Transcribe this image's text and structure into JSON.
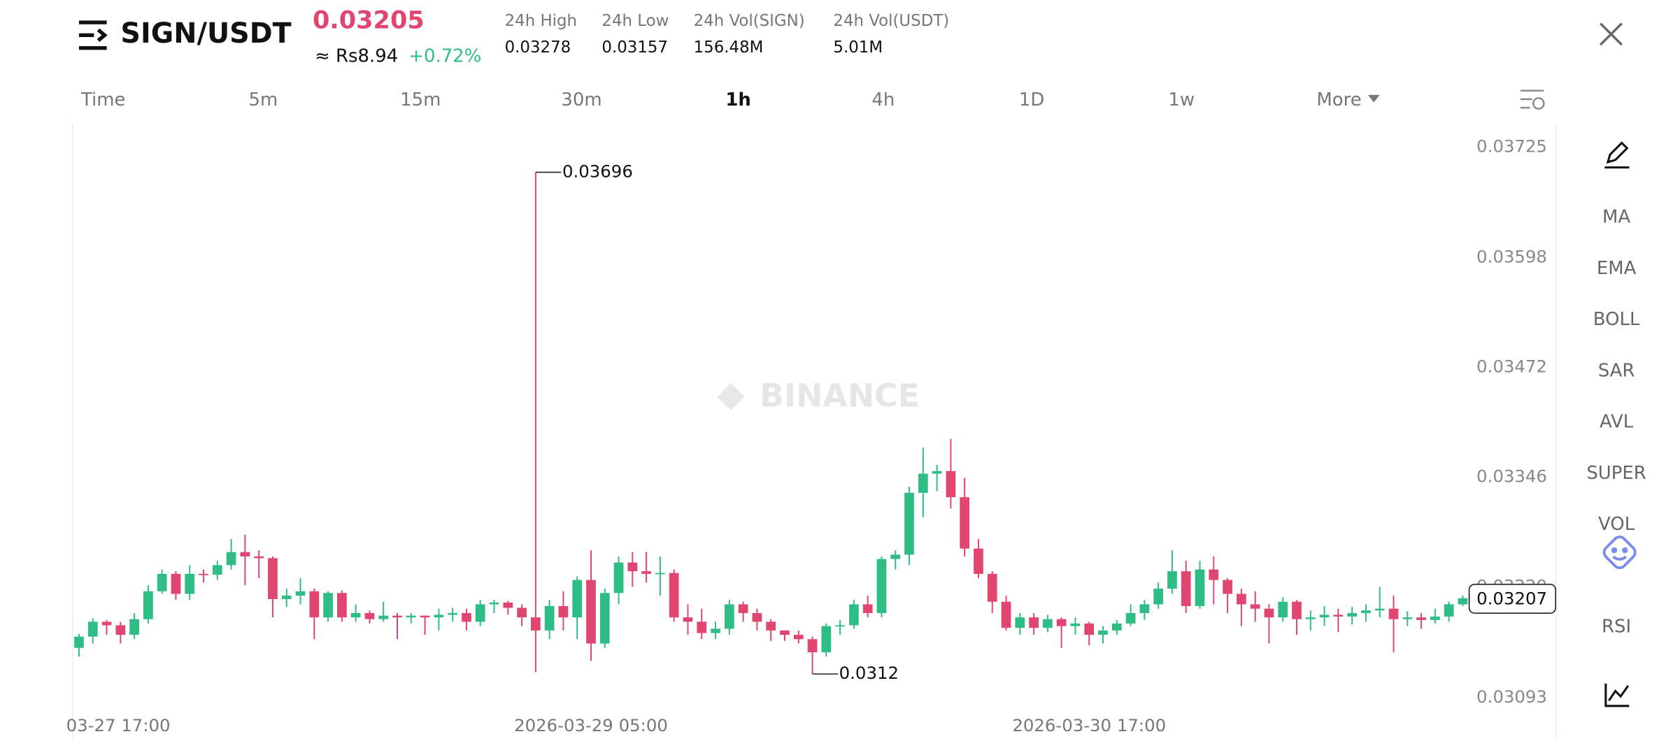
{
  "header": {
    "pair": "SIGN/USDT",
    "price": "0.03205",
    "fiat": "≈ Rs8.94",
    "change": "+0.72%",
    "stats": [
      {
        "label": "24h High",
        "value": "0.03278"
      },
      {
        "label": "24h Low",
        "value": "0.03157"
      },
      {
        "label": "24h Vol(SIGN)",
        "value": "156.48M"
      },
      {
        "label": "24h Vol(USDT)",
        "value": "5.01M"
      }
    ]
  },
  "tabs": [
    "Time",
    "5m",
    "15m",
    "30m",
    "1h",
    "4h",
    "1D",
    "1w",
    "More"
  ],
  "active_tab": "1h",
  "indicators": [
    "MA",
    "EMA",
    "BOLL",
    "SAR",
    "AVL",
    "SUPER",
    "VOL",
    "RSI"
  ],
  "watermark": "BINANCE",
  "chart_data": {
    "type": "candlestick",
    "categories": [
      null,
      "03-27 17:00",
      null,
      null,
      null,
      null,
      null,
      null,
      null,
      null,
      null,
      null,
      null,
      null,
      null,
      null,
      null,
      null,
      null,
      null,
      null,
      null,
      null,
      null,
      null,
      null,
      null,
      null,
      null,
      null,
      null,
      null,
      null,
      null,
      null,
      null,
      null,
      "2026-03-29 05:00",
      null,
      null,
      null,
      null,
      null,
      null,
      null,
      null,
      null,
      null,
      null,
      null,
      null,
      null,
      null,
      null,
      null,
      null,
      null,
      null,
      null,
      null,
      null,
      null,
      null,
      null,
      null,
      null,
      null,
      null,
      null,
      null,
      null,
      null,
      null,
      "2026-03-30 17:00",
      null,
      null,
      null,
      null,
      null,
      null,
      null,
      null,
      null,
      null,
      null,
      null,
      null,
      null,
      null,
      null,
      null,
      null,
      null,
      null,
      null,
      null,
      null,
      null,
      null,
      null,
      null
    ],
    "open": [
      0.0315,
      0.03163,
      0.0318,
      0.03176,
      0.03165,
      0.03183,
      0.03215,
      0.03235,
      0.03212,
      0.03235,
      0.03234,
      0.03245,
      0.0326,
      0.03255,
      0.03253,
      0.03206,
      0.0321,
      0.03215,
      0.03185,
      0.03213,
      0.03185,
      0.0319,
      0.03183,
      0.03187,
      0.03185,
      0.03187,
      0.03185,
      0.03188,
      0.0319,
      0.0318,
      0.032,
      0.03202,
      0.03196,
      0.03185,
      0.0317,
      0.03198,
      0.03185,
      0.03228,
      0.03155,
      0.03213,
      0.03248,
      0.03238,
      0.03235,
      0.03236,
      0.03185,
      0.0318,
      0.03167,
      0.03172,
      0.032,
      0.0319,
      0.0318,
      0.0317,
      0.03165,
      0.0316,
      0.03145,
      0.03175,
      0.03176,
      0.032,
      0.0319,
      0.03252,
      0.03257,
      0.03328,
      0.0335,
      0.03353,
      0.03323,
      0.03264,
      0.03235,
      0.03203,
      0.03173,
      0.03185,
      0.03173,
      0.03183,
      0.03175,
      0.03178,
      0.03165,
      0.0317,
      0.03178,
      0.0319,
      0.032,
      0.03218,
      0.03238,
      0.03198,
      0.0324,
      0.03228,
      0.03212,
      0.032,
      0.03195,
      0.03185,
      0.03203,
      0.03183,
      0.03185,
      0.03188,
      0.03186,
      0.0319,
      0.03193,
      0.03195,
      0.03183,
      0.03185,
      0.03182,
      0.03186,
      0.032
    ],
    "high": [
      0.03166,
      0.03184,
      0.03182,
      0.0318,
      0.0319,
      0.03222,
      0.0324,
      0.03238,
      0.03245,
      0.0324,
      0.0325,
      0.03275,
      0.0328,
      0.03262,
      0.03255,
      0.03218,
      0.0323,
      0.03218,
      0.03215,
      0.03216,
      0.032,
      0.03193,
      0.03203,
      0.0319,
      0.0319,
      0.03187,
      0.03195,
      0.03196,
      0.03195,
      0.03205,
      0.03205,
      0.03204,
      0.032,
      0.03696,
      0.03205,
      0.03215,
      0.03232,
      0.03262,
      0.03218,
      0.03255,
      0.0326,
      0.0326,
      0.03255,
      0.0324,
      0.032,
      0.03195,
      0.0318,
      0.03205,
      0.03203,
      0.03195,
      0.03183,
      0.0317,
      0.0317,
      0.03163,
      0.03178,
      0.03182,
      0.03205,
      0.0321,
      0.03255,
      0.03262,
      0.03335,
      0.0338,
      0.0336,
      0.0339,
      0.03345,
      0.03275,
      0.03238,
      0.0321,
      0.0319,
      0.0319,
      0.03188,
      0.03185,
      0.03185,
      0.0318,
      0.03175,
      0.03182,
      0.032,
      0.03205,
      0.03225,
      0.03262,
      0.0325,
      0.0325,
      0.03255,
      0.0323,
      0.03218,
      0.03215,
      0.032,
      0.03208,
      0.03205,
      0.03193,
      0.03198,
      0.03195,
      0.03197,
      0.032,
      0.0322,
      0.0321,
      0.03192,
      0.0319,
      0.03195,
      0.03203,
      0.0321
    ],
    "low": [
      0.0314,
      0.03155,
      0.03165,
      0.03155,
      0.0316,
      0.03178,
      0.03212,
      0.03205,
      0.03205,
      0.03225,
      0.03228,
      0.0324,
      0.03222,
      0.0323,
      0.03185,
      0.03197,
      0.032,
      0.0316,
      0.0318,
      0.0318,
      0.0318,
      0.03178,
      0.0318,
      0.0316,
      0.03178,
      0.03165,
      0.0317,
      0.0318,
      0.0317,
      0.03175,
      0.0319,
      0.03188,
      0.03175,
      0.03122,
      0.0316,
      0.0317,
      0.0316,
      0.03135,
      0.0315,
      0.032,
      0.0322,
      0.03225,
      0.0321,
      0.0318,
      0.03165,
      0.0316,
      0.0316,
      0.03165,
      0.0318,
      0.0317,
      0.03158,
      0.03158,
      0.03155,
      0.0312,
      0.0314,
      0.03165,
      0.03172,
      0.03185,
      0.03185,
      0.0324,
      0.03245,
      0.033,
      0.0333,
      0.0331,
      0.03255,
      0.0323,
      0.0319,
      0.0317,
      0.03165,
      0.03165,
      0.03168,
      0.0315,
      0.03165,
      0.03153,
      0.03155,
      0.03165,
      0.03175,
      0.03182,
      0.03195,
      0.03212,
      0.0319,
      0.03195,
      0.032,
      0.0319,
      0.03175,
      0.0318,
      0.03155,
      0.0318,
      0.03165,
      0.0317,
      0.03175,
      0.03168,
      0.03177,
      0.0318,
      0.03185,
      0.03145,
      0.03175,
      0.03172,
      0.03178,
      0.0318,
      0.03198
    ],
    "close": [
      0.03163,
      0.0318,
      0.03176,
      0.03165,
      0.03183,
      0.03215,
      0.03235,
      0.03212,
      0.03235,
      0.03234,
      0.03245,
      0.0326,
      0.03255,
      0.03253,
      0.03206,
      0.0321,
      0.03215,
      0.03185,
      0.03213,
      0.03185,
      0.0319,
      0.03183,
      0.03187,
      0.03185,
      0.03187,
      0.03185,
      0.03188,
      0.0319,
      0.0318,
      0.032,
      0.03202,
      0.03196,
      0.03185,
      0.0317,
      0.03198,
      0.03185,
      0.03228,
      0.03155,
      0.03213,
      0.03248,
      0.03238,
      0.03235,
      0.03236,
      0.03185,
      0.0318,
      0.03167,
      0.03172,
      0.032,
      0.0319,
      0.0318,
      0.0317,
      0.03165,
      0.0316,
      0.03145,
      0.03175,
      0.03176,
      0.032,
      0.0319,
      0.03252,
      0.03257,
      0.03328,
      0.0335,
      0.03353,
      0.03323,
      0.03264,
      0.03235,
      0.03203,
      0.03173,
      0.03185,
      0.03173,
      0.03183,
      0.03175,
      0.03178,
      0.03165,
      0.0317,
      0.03178,
      0.0319,
      0.032,
      0.03218,
      0.03238,
      0.03198,
      0.0324,
      0.03228,
      0.03212,
      0.032,
      0.03195,
      0.03185,
      0.03203,
      0.03183,
      0.03185,
      0.03188,
      0.03186,
      0.0319,
      0.03193,
      0.03195,
      0.03183,
      0.03185,
      0.03182,
      0.03186,
      0.032,
      0.03207
    ],
    "up_color": "#2ebd85",
    "down_color": "#e0466f",
    "ylim": [
      0.03076,
      0.03753
    ],
    "yticks": [
      0.03093,
      {
        "value": 0.0322,
        "label": "0.03220"
      },
      0.03346,
      0.03472,
      0.03598,
      0.03725
    ],
    "grid": false
  }
}
